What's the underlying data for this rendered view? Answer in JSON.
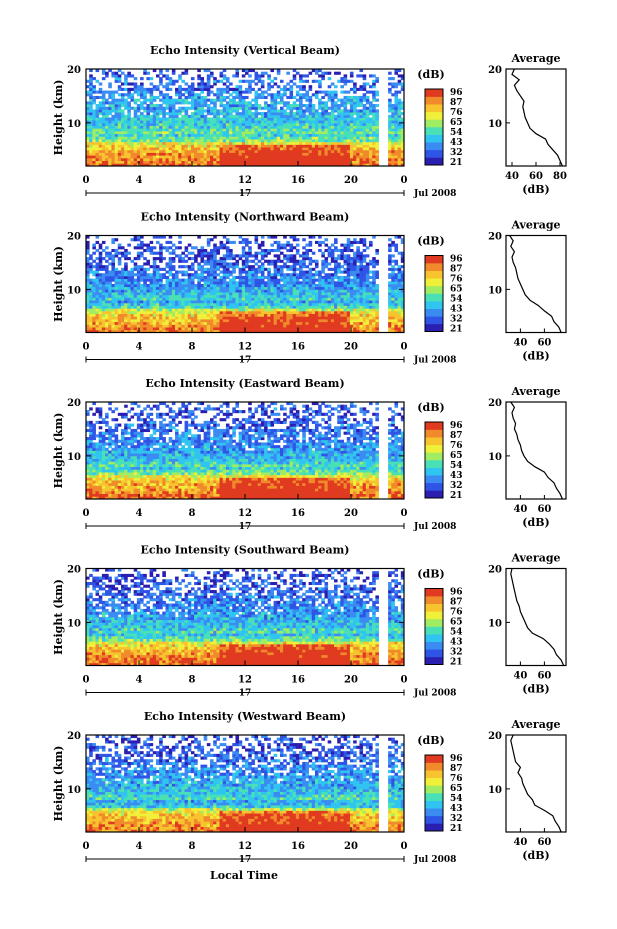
{
  "figure": {
    "xlabel": "Local Time"
  },
  "colorbar": {
    "unit": "(dB)",
    "labels": [
      "96",
      "87",
      "76",
      "65",
      "54",
      "43",
      "32",
      "21"
    ],
    "colors": [
      "#2a1fb0",
      "#2f55e6",
      "#3a8cf2",
      "#30c4f0",
      "#49e0b6",
      "#a0ec62",
      "#f0f03a",
      "#f7c430",
      "#f08a2a",
      "#e03a20"
    ]
  },
  "chart_data": [
    {
      "type": "heatmap",
      "title": "Echo Intensity (Vertical Beam)",
      "ylabel": "Height (km)",
      "yticks": [
        "20",
        "10"
      ],
      "ylim": [
        2,
        20
      ],
      "xticks": [
        "0",
        "4",
        "8",
        "12",
        "16",
        "20",
        "0"
      ],
      "xlim": [
        0,
        24
      ],
      "date_day": "17",
      "date_month": "Jul 2008",
      "colorbar_unit": "(dB)",
      "colorbar_range": [
        21,
        96
      ],
      "data_gap_hour": 22.5,
      "average": {
        "title": "Average",
        "xlabel": "(dB)",
        "xticks": [
          "40",
          "60",
          "80"
        ],
        "xlim": [
          35,
          85
        ],
        "ylim": [
          2,
          20
        ],
        "height_km": [
          2,
          3,
          4,
          5,
          6,
          7,
          8,
          9,
          10,
          11,
          12,
          13,
          14,
          15,
          16,
          17,
          18,
          19,
          20
        ],
        "db": [
          82,
          80,
          78,
          74,
          70,
          68,
          60,
          55,
          53,
          51,
          50,
          49,
          50,
          47,
          44,
          42,
          46,
          40,
          42
        ]
      }
    },
    {
      "type": "heatmap",
      "title": "Echo Intensity (Northward Beam)",
      "ylabel": "Height (km)",
      "yticks": [
        "20",
        "10"
      ],
      "ylim": [
        2,
        20
      ],
      "xticks": [
        "0",
        "4",
        "8",
        "12",
        "16",
        "20",
        "0"
      ],
      "xlim": [
        0,
        24
      ],
      "date_day": "17",
      "date_month": "Jul 2008",
      "colorbar_unit": "(dB)",
      "colorbar_range": [
        21,
        96
      ],
      "data_gap_hour": 22.5,
      "average": {
        "title": "Average",
        "xlabel": "(dB)",
        "xticks": [
          "40",
          "60"
        ],
        "xlim": [
          28,
          78
        ],
        "ylim": [
          2,
          20
        ],
        "height_km": [
          2,
          3,
          4,
          5,
          6,
          7,
          8,
          9,
          10,
          11,
          12,
          13,
          14,
          15,
          16,
          17,
          18,
          19,
          20
        ],
        "db": [
          74,
          72,
          68,
          66,
          60,
          55,
          48,
          44,
          42,
          40,
          38,
          37,
          36,
          34,
          33,
          35,
          32,
          34,
          31
        ]
      }
    },
    {
      "type": "heatmap",
      "title": "Echo Intensity (Eastward Beam)",
      "ylabel": "Height (km)",
      "yticks": [
        "20",
        "10"
      ],
      "ylim": [
        2,
        20
      ],
      "xticks": [
        "0",
        "4",
        "8",
        "12",
        "16",
        "20",
        "0"
      ],
      "xlim": [
        0,
        24
      ],
      "date_day": "17",
      "date_month": "Jul 2008",
      "colorbar_unit": "(dB)",
      "colorbar_range": [
        21,
        96
      ],
      "data_gap_hour": 22.5,
      "average": {
        "title": "Average",
        "xlabel": "(dB)",
        "xticks": [
          "40",
          "60"
        ],
        "xlim": [
          28,
          78
        ],
        "ylim": [
          2,
          20
        ],
        "height_km": [
          2,
          3,
          4,
          5,
          6,
          7,
          8,
          9,
          10,
          11,
          12,
          13,
          14,
          15,
          16,
          17,
          18,
          19,
          20
        ],
        "db": [
          75,
          73,
          70,
          68,
          63,
          60,
          52,
          46,
          43,
          41,
          40,
          38,
          37,
          35,
          36,
          34,
          33,
          35,
          32
        ]
      }
    },
    {
      "type": "heatmap",
      "title": "Echo Intensity (Southward Beam)",
      "ylabel": "Height (km)",
      "yticks": [
        "20",
        "10"
      ],
      "ylim": [
        2,
        20
      ],
      "xticks": [
        "0",
        "4",
        "8",
        "12",
        "16",
        "20",
        "0"
      ],
      "xlim": [
        0,
        24
      ],
      "date_day": "17",
      "date_month": "Jul 2008",
      "colorbar_unit": "(dB)",
      "colorbar_range": [
        21,
        96
      ],
      "data_gap_hour": 22.5,
      "average": {
        "title": "Average",
        "xlabel": "(dB)",
        "xticks": [
          "40",
          "60"
        ],
        "xlim": [
          28,
          78
        ],
        "ylim": [
          2,
          20
        ],
        "height_km": [
          2,
          3,
          4,
          5,
          6,
          7,
          8,
          9,
          10,
          11,
          12,
          13,
          14,
          15,
          16,
          17,
          18,
          19,
          20
        ],
        "db": [
          76,
          74,
          70,
          68,
          64,
          59,
          50,
          46,
          44,
          42,
          40,
          39,
          37,
          36,
          35,
          34,
          33,
          32,
          33
        ]
      }
    },
    {
      "type": "heatmap",
      "title": "Echo Intensity (Westward Beam)",
      "ylabel": "Height (km)",
      "yticks": [
        "20",
        "10"
      ],
      "ylim": [
        2,
        20
      ],
      "xticks": [
        "0",
        "4",
        "8",
        "12",
        "16",
        "20",
        "0"
      ],
      "xlim": [
        0,
        24
      ],
      "date_day": "17",
      "date_month": "Jul 2008",
      "colorbar_unit": "(dB)",
      "colorbar_range": [
        21,
        96
      ],
      "data_gap_hour": 22.5,
      "average": {
        "title": "Average",
        "xlabel": "(dB)",
        "xticks": [
          "40",
          "60"
        ],
        "xlim": [
          28,
          78
        ],
        "ylim": [
          2,
          20
        ],
        "height_km": [
          2,
          3,
          4,
          5,
          6,
          7,
          8,
          9,
          10,
          11,
          12,
          13,
          14,
          15,
          16,
          17,
          18,
          19,
          20
        ],
        "db": [
          74,
          72,
          69,
          67,
          60,
          52,
          50,
          46,
          44,
          42,
          41,
          38,
          40,
          36,
          35,
          34,
          33,
          32,
          34
        ]
      }
    }
  ]
}
